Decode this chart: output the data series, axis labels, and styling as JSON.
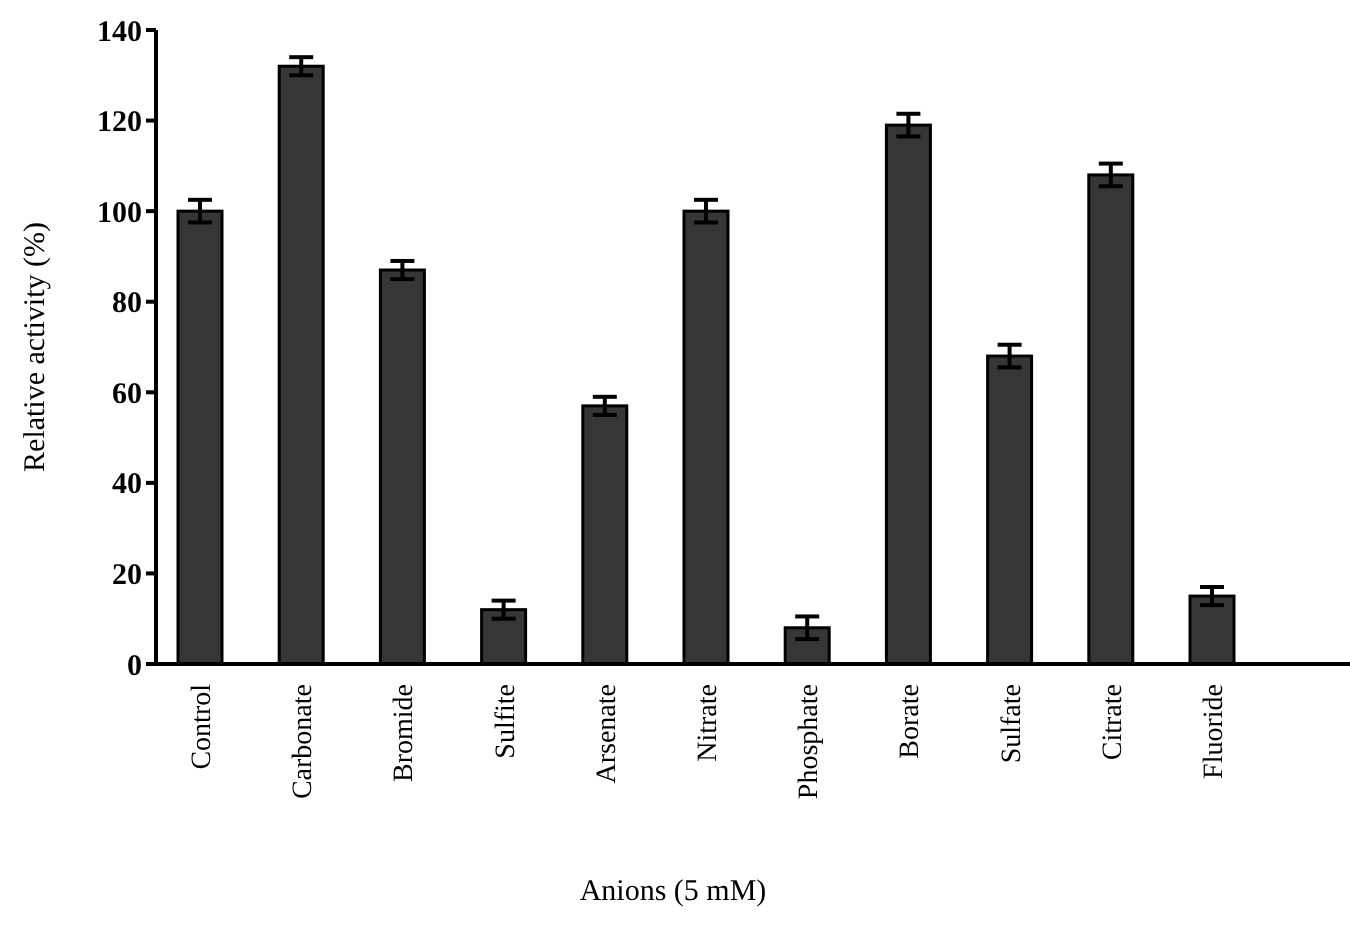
{
  "chart_data": {
    "type": "bar",
    "xlabel": "Anions (5 mM)",
    "ylabel": "Relative activity (%)",
    "categories": [
      "Control",
      "Carbonate",
      "Bromide",
      "Sulfite",
      "Arsenate",
      "Nitrate",
      "Phosphate",
      "Borate",
      "Sulfate",
      "Citrate",
      "Fluoride"
    ],
    "values": [
      100,
      132,
      87,
      12,
      57,
      100,
      8,
      119,
      68,
      108,
      15
    ],
    "errors": [
      2.5,
      2,
      2,
      2,
      2,
      2.5,
      2.5,
      2.5,
      2.5,
      2.5,
      2
    ],
    "color": "#363636",
    "ylim": [
      0,
      140
    ],
    "yticks": [
      0,
      20,
      40,
      60,
      80,
      100,
      120,
      140
    ],
    "grid": false
  }
}
